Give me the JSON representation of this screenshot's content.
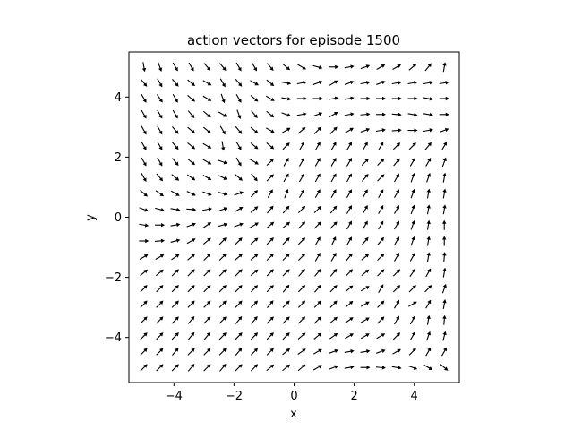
{
  "chart_data": {
    "type": "quiver",
    "title": "action vectors for episode 1500",
    "xlabel": "x",
    "ylabel": "y",
    "xlim": [
      -5.5,
      5.5
    ],
    "ylim": [
      -5.5,
      5.5
    ],
    "grid": false,
    "x_ticks": [
      -4,
      -2,
      0,
      2,
      4
    ],
    "y_ticks": [
      -4,
      -2,
      0,
      2,
      4
    ],
    "x_tick_labels": [
      "−4",
      "−2",
      "0",
      "2",
      "4"
    ],
    "y_tick_labels": [
      "−4",
      "−2",
      "0",
      "2",
      "4"
    ],
    "arrow_color": "#000000",
    "grid_x": [
      -5,
      -4.47,
      -3.95,
      -3.42,
      -2.89,
      -2.37,
      -1.84,
      -1.32,
      -0.79,
      -0.26,
      0.26,
      0.79,
      1.32,
      1.84,
      2.37,
      2.89,
      3.42,
      3.95,
      4.47,
      5
    ],
    "grid_y": [
      -5,
      -4.47,
      -3.95,
      -3.42,
      -2.89,
      -2.37,
      -1.84,
      -1.32,
      -0.79,
      -0.26,
      0.26,
      0.79,
      1.32,
      1.84,
      2.37,
      2.89,
      3.42,
      3.95,
      4.47,
      5
    ],
    "vectors_note": "unit action direction at each grid point; rows from y=-5 (bottom) to y=5 (top)",
    "directions_deg": [
      [
        45,
        45,
        45,
        50,
        45,
        50,
        45,
        45,
        40,
        40,
        40,
        30,
        20,
        10,
        0,
        355,
        350,
        340,
        330,
        320
      ],
      [
        45,
        45,
        50,
        45,
        45,
        45,
        50,
        45,
        45,
        40,
        35,
        30,
        20,
        10,
        10,
        20,
        30,
        45,
        60,
        60
      ],
      [
        45,
        45,
        45,
        50,
        50,
        45,
        45,
        45,
        45,
        45,
        40,
        40,
        35,
        30,
        30,
        30,
        45,
        60,
        70,
        75
      ],
      [
        45,
        45,
        45,
        50,
        45,
        45,
        50,
        50,
        45,
        45,
        45,
        45,
        40,
        35,
        30,
        45,
        60,
        60,
        80,
        85
      ],
      [
        45,
        45,
        45,
        45,
        45,
        45,
        45,
        45,
        50,
        45,
        45,
        45,
        45,
        40,
        30,
        45,
        60,
        30,
        60,
        80
      ],
      [
        45,
        45,
        45,
        45,
        45,
        45,
        45,
        45,
        45,
        50,
        45,
        50,
        45,
        40,
        30,
        60,
        45,
        45,
        45,
        70
      ],
      [
        40,
        40,
        45,
        45,
        45,
        45,
        45,
        40,
        45,
        45,
        50,
        50,
        50,
        45,
        40,
        45,
        45,
        55,
        60,
        80
      ],
      [
        30,
        30,
        35,
        40,
        45,
        45,
        40,
        40,
        45,
        45,
        45,
        60,
        60,
        50,
        40,
        45,
        60,
        60,
        80,
        85
      ],
      [
        0,
        5,
        15,
        30,
        40,
        45,
        45,
        40,
        45,
        45,
        45,
        60,
        65,
        60,
        50,
        50,
        60,
        70,
        80,
        90
      ],
      [
        350,
        0,
        10,
        20,
        35,
        15,
        20,
        30,
        40,
        40,
        45,
        45,
        45,
        60,
        60,
        60,
        60,
        70,
        80,
        90
      ],
      [
        340,
        345,
        350,
        355,
        10,
        20,
        30,
        40,
        50,
        50,
        45,
        45,
        50,
        60,
        60,
        60,
        60,
        70,
        80,
        80
      ],
      [
        320,
        325,
        330,
        335,
        340,
        345,
        20,
        45,
        60,
        70,
        60,
        60,
        60,
        60,
        60,
        60,
        60,
        70,
        80,
        80
      ],
      [
        300,
        310,
        320,
        325,
        330,
        335,
        320,
        310,
        45,
        60,
        60,
        60,
        60,
        60,
        50,
        45,
        60,
        70,
        70,
        80
      ],
      [
        300,
        300,
        310,
        320,
        330,
        340,
        300,
        330,
        45,
        60,
        60,
        60,
        60,
        60,
        45,
        45,
        50,
        60,
        60,
        70
      ],
      [
        300,
        300,
        310,
        320,
        330,
        280,
        300,
        320,
        320,
        45,
        60,
        60,
        60,
        60,
        60,
        60,
        45,
        45,
        50,
        60
      ],
      [
        300,
        300,
        310,
        320,
        320,
        300,
        310,
        320,
        330,
        30,
        40,
        45,
        45,
        30,
        20,
        10,
        5,
        0,
        10,
        20
      ],
      [
        300,
        300,
        300,
        310,
        320,
        330,
        290,
        310,
        320,
        340,
        10,
        20,
        30,
        10,
        5,
        0,
        355,
        350,
        350,
        0
      ],
      [
        300,
        305,
        300,
        320,
        330,
        290,
        300,
        320,
        330,
        350,
        0,
        0,
        10,
        10,
        0,
        0,
        0,
        0,
        350,
        0
      ],
      [
        310,
        300,
        310,
        320,
        330,
        300,
        310,
        330,
        320,
        350,
        10,
        20,
        30,
        20,
        10,
        20,
        10,
        10,
        10,
        10
      ],
      [
        280,
        290,
        300,
        300,
        310,
        310,
        300,
        300,
        310,
        320,
        330,
        345,
        0,
        10,
        20,
        30,
        30,
        40,
        50,
        80
      ]
    ]
  }
}
